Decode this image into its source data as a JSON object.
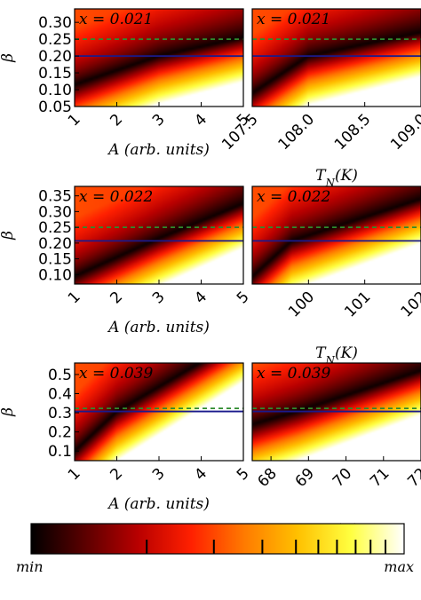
{
  "figure": {
    "colorbar": {
      "min_label": "min",
      "max_label": "max",
      "ticks": [
        0.31,
        0.49,
        0.62,
        0.71,
        0.77,
        0.82,
        0.87,
        0.91,
        0.95
      ]
    },
    "colors": {
      "ref_line": "#1a1a8c",
      "dashed_line": "#2e8b2e",
      "colormap": [
        "#000000",
        "#5a0000",
        "#b80000",
        "#ff2000",
        "#ff7a00",
        "#ffc000",
        "#ffff40",
        "#ffffff"
      ]
    }
  },
  "chart_data": [
    {
      "type": "heatmap",
      "row": 0,
      "col": 0,
      "annotation": "x = 0.021",
      "xlabel": "A (arb. units)",
      "ylabel": "β",
      "xlim": [
        1,
        5
      ],
      "ylim": [
        0.05,
        0.34
      ],
      "xticks": [
        1,
        2,
        3,
        4,
        5
      ],
      "xticklabels": [
        "1",
        "2",
        "3",
        "4",
        "5"
      ],
      "yticks": [
        0.05,
        0.1,
        0.15,
        0.2,
        0.25,
        0.3
      ],
      "yticklabels": [
        "0.05",
        "0.10",
        "0.15",
        "0.20",
        "0.25",
        "0.30"
      ],
      "hline_solid": 0.2,
      "hline_dashed": 0.25,
      "ridge": [
        [
          1,
          0.115
        ],
        [
          3,
          0.2
        ],
        [
          5,
          0.255
        ]
      ]
    },
    {
      "type": "heatmap",
      "row": 0,
      "col": 1,
      "annotation": "x = 0.021",
      "xlabel": "T_N(K)",
      "ylabel": "",
      "xlim": [
        107.5,
        109.0
      ],
      "ylim": [
        0.05,
        0.34
      ],
      "xticks": [
        107.5,
        108.0,
        108.5,
        109.0
      ],
      "xticklabels": [
        "107.5",
        "108.0",
        "108.5",
        "109.0"
      ],
      "yticks": [],
      "yticklabels": [],
      "hline_solid": 0.2,
      "hline_dashed": 0.25,
      "ridge": [
        [
          107.5,
          0.09
        ],
        [
          108.0,
          0.2
        ],
        [
          109.0,
          0.27
        ]
      ]
    },
    {
      "type": "heatmap",
      "row": 1,
      "col": 0,
      "annotation": "x = 0.022",
      "xlabel": "A (arb. units)",
      "ylabel": "β",
      "xlim": [
        1,
        5
      ],
      "ylim": [
        0.07,
        0.38
      ],
      "xticks": [
        1,
        2,
        3,
        4,
        5
      ],
      "xticklabels": [
        "1",
        "2",
        "3",
        "4",
        "5"
      ],
      "yticks": [
        0.1,
        0.15,
        0.2,
        0.25,
        0.3,
        0.35
      ],
      "yticklabels": [
        "0.10",
        "0.15",
        "0.20",
        "0.25",
        "0.30",
        "0.35"
      ],
      "hline_solid": 0.207,
      "hline_dashed": 0.25,
      "ridge": [
        [
          1,
          0.095
        ],
        [
          3,
          0.215
        ],
        [
          5,
          0.325
        ]
      ]
    },
    {
      "type": "heatmap",
      "row": 1,
      "col": 1,
      "annotation": "x = 0.022",
      "xlabel": "T_N(K)",
      "ylabel": "",
      "xlim": [
        99,
        102
      ],
      "ylim": [
        0.07,
        0.38
      ],
      "xticks": [
        100,
        101,
        102
      ],
      "xticklabels": [
        "100",
        "101",
        "102"
      ],
      "yticks": [],
      "yticklabels": [],
      "hline_solid": 0.207,
      "hline_dashed": 0.25,
      "ridge": [
        [
          99.1,
          0.11
        ],
        [
          99.7,
          0.207
        ],
        [
          102,
          0.34
        ]
      ]
    },
    {
      "type": "heatmap",
      "row": 2,
      "col": 0,
      "annotation": "x = 0.039",
      "xlabel": "A (arb. units)",
      "ylabel": "β",
      "xlim": [
        1,
        5
      ],
      "ylim": [
        0.05,
        0.56
      ],
      "xticks": [
        1,
        2,
        3,
        4,
        5
      ],
      "xticklabels": [
        "1",
        "2",
        "3",
        "4",
        "5"
      ],
      "yticks": [
        0.1,
        0.2,
        0.3,
        0.4,
        0.5
      ],
      "yticklabels": [
        "0.1",
        "0.2",
        "0.3",
        "0.4",
        "0.5"
      ],
      "hline_solid": 0.307,
      "hline_dashed": 0.323,
      "ridge": [
        [
          1,
          0.1
        ],
        [
          2,
          0.307
        ],
        [
          3.5,
          0.5
        ]
      ]
    },
    {
      "type": "heatmap",
      "row": 2,
      "col": 1,
      "annotation": "x = 0.039",
      "xlabel": "T_N(K)",
      "ylabel": "",
      "xlim": [
        67.5,
        72
      ],
      "ylim": [
        0.05,
        0.56
      ],
      "xticks": [
        68,
        69,
        70,
        71,
        72
      ],
      "xticklabels": [
        "68",
        "69",
        "70",
        "71",
        "72"
      ],
      "yticks": [],
      "yticklabels": [],
      "hline_solid": 0.307,
      "hline_dashed": 0.323,
      "ridge": [
        [
          67.5,
          0.24
        ],
        [
          68.7,
          0.307
        ],
        [
          72,
          0.52
        ]
      ]
    }
  ]
}
